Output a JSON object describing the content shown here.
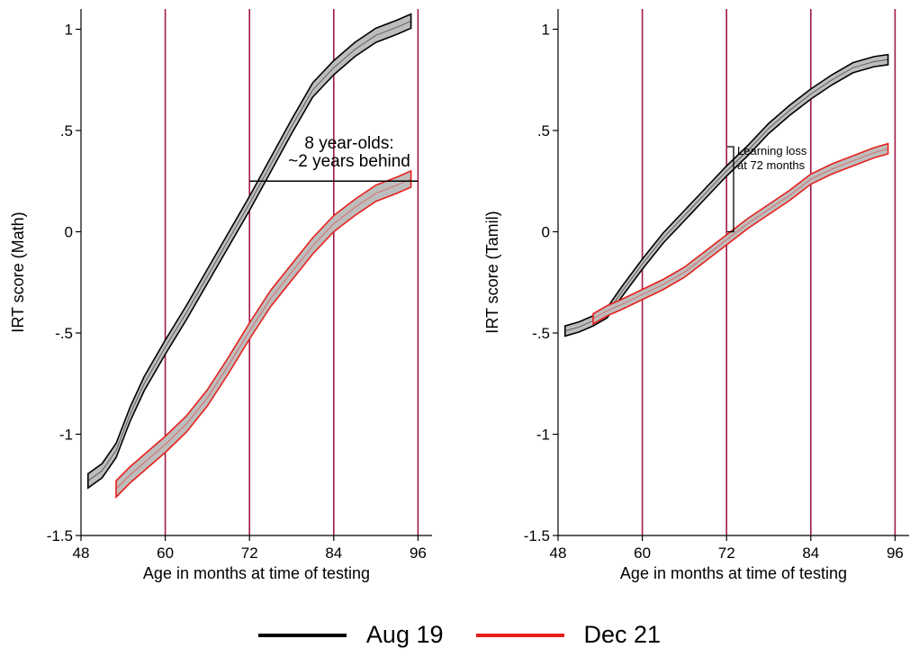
{
  "colors": {
    "aug19": "#000000",
    "dec21": "#e8201b",
    "band": "#bdbdbd",
    "vline": "#a01a4a"
  },
  "legend": [
    {
      "key": "aug19",
      "label": "Aug 19"
    },
    {
      "key": "dec21",
      "label": "Dec 21"
    }
  ],
  "chart_data": [
    {
      "type": "line",
      "ylabel": "IRT score (Math)",
      "xlabel": "Age in months at time of testing",
      "xlim": [
        48,
        98
      ],
      "ylim": [
        -1.5,
        1.1
      ],
      "xticks": [
        "48",
        "60",
        "72",
        "84",
        "96"
      ],
      "yticks": [
        "-1.5",
        "-1",
        "-.5",
        "0",
        ".5",
        "1"
      ],
      "vlines": [
        60,
        72,
        84,
        96
      ],
      "annotation": {
        "lines": [
          "8 year-olds:",
          "~2 years behind"
        ],
        "bracket": {
          "x1": 72,
          "x2": 96,
          "y": 0.25
        }
      },
      "series": [
        {
          "name": "Aug 19",
          "color_key": "aug19",
          "x": [
            49,
            51,
            53,
            55,
            57,
            60,
            63,
            66,
            69,
            72,
            75,
            78,
            81,
            84,
            87,
            90,
            93,
            95
          ],
          "y": [
            -1.23,
            -1.18,
            -1.08,
            -0.9,
            -0.75,
            -0.57,
            -0.4,
            -0.22,
            -0.04,
            0.14,
            0.33,
            0.52,
            0.7,
            0.81,
            0.9,
            0.97,
            1.01,
            1.04
          ],
          "band": 0.035
        },
        {
          "name": "Dec 21",
          "color_key": "dec21",
          "x": [
            53,
            55,
            57,
            60,
            63,
            66,
            69,
            72,
            75,
            78,
            81,
            84,
            87,
            90,
            93,
            95
          ],
          "y": [
            -1.27,
            -1.2,
            -1.14,
            -1.05,
            -0.95,
            -0.82,
            -0.66,
            -0.49,
            -0.33,
            -0.2,
            -0.07,
            0.04,
            0.12,
            0.19,
            0.23,
            0.26
          ],
          "band": 0.04
        }
      ]
    },
    {
      "type": "line",
      "ylabel": "IRT score (Tamil)",
      "xlabel": "Age in months at time of testing",
      "xlim": [
        48,
        98
      ],
      "ylim": [
        -1.5,
        1.1
      ],
      "xticks": [
        "48",
        "60",
        "72",
        "84",
        "96"
      ],
      "yticks": [
        "-1.5",
        "-1",
        "-.5",
        "0",
        ".5",
        "1"
      ],
      "vlines": [
        60,
        72,
        84,
        96
      ],
      "annotation": {
        "lines": [
          "Learning loss",
          "at 72 months"
        ],
        "bracket": {
          "x": 73,
          "y1": 0.0,
          "y2": 0.42
        }
      },
      "series": [
        {
          "name": "Aug 19",
          "color_key": "aug19",
          "x": [
            49,
            51,
            53,
            55,
            57,
            60,
            63,
            66,
            69,
            72,
            75,
            78,
            81,
            84,
            87,
            90,
            93,
            95
          ],
          "y": [
            -0.49,
            -0.47,
            -0.44,
            -0.4,
            -0.3,
            -0.16,
            -0.03,
            0.08,
            0.19,
            0.3,
            0.4,
            0.51,
            0.6,
            0.68,
            0.75,
            0.81,
            0.84,
            0.85
          ],
          "band": 0.025
        },
        {
          "name": "Dec 21",
          "color_key": "dec21",
          "x": [
            53,
            55,
            57,
            60,
            63,
            66,
            69,
            72,
            75,
            78,
            81,
            84,
            87,
            90,
            93,
            95
          ],
          "y": [
            -0.43,
            -0.39,
            -0.36,
            -0.31,
            -0.26,
            -0.2,
            -0.12,
            -0.04,
            0.04,
            0.11,
            0.18,
            0.26,
            0.31,
            0.35,
            0.39,
            0.41
          ],
          "band": 0.025
        }
      ]
    }
  ]
}
